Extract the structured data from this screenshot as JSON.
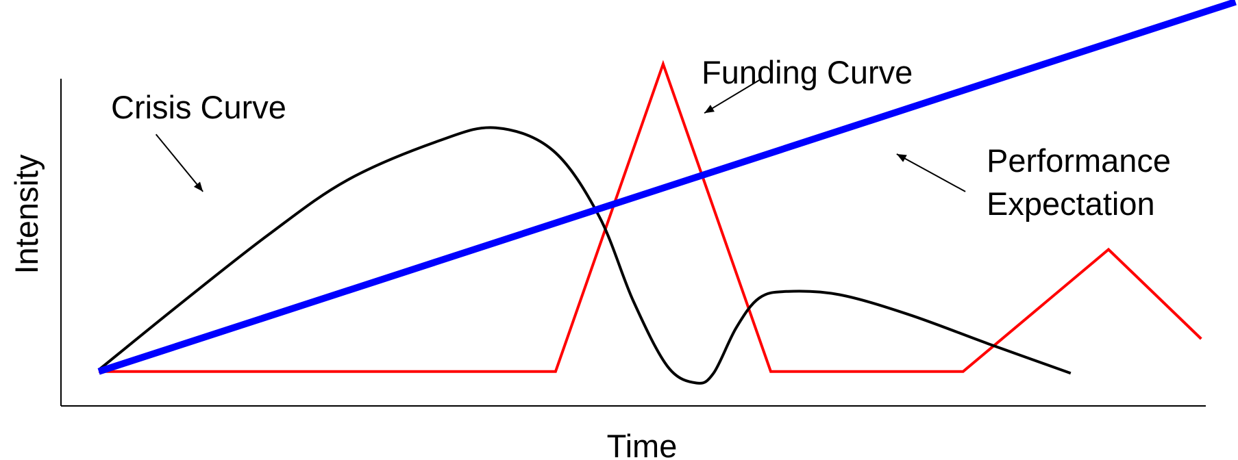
{
  "chart_data": {
    "type": "line",
    "title": "",
    "xlabel": "Time",
    "ylabel": "Intensity",
    "xlim": [
      0,
      100
    ],
    "ylim": [
      0,
      100
    ],
    "grid": false,
    "legend": "none",
    "series": [
      {
        "name": "Crisis Curve",
        "color": "#000000",
        "smooth": true,
        "x": [
          3.3,
          10,
          18,
          25,
          33,
          38,
          43,
          47,
          50,
          53,
          55.5,
          57,
          59,
          61,
          63.5,
          68,
          74,
          81,
          88.2
        ],
        "y": [
          11,
          30,
          52,
          69,
          81,
          85,
          78,
          58,
          32,
          12,
          7,
          10,
          24,
          33,
          35,
          34,
          28,
          19,
          10
        ]
      },
      {
        "name": "Funding Curve",
        "color": "#ff0000",
        "smooth": false,
        "x": [
          3.3,
          43.2,
          52.6,
          62,
          78.8,
          91.5,
          99.6
        ],
        "y": [
          10.5,
          10.5,
          104.5,
          10.5,
          10.5,
          47.8,
          20.5
        ]
      },
      {
        "name": "Performance Expectation",
        "color": "#0000ff",
        "smooth": false,
        "x": [
          3.3,
          102.6
        ],
        "y": [
          10.5,
          123.5
        ]
      }
    ],
    "annotations": [
      {
        "id": "crisis",
        "lines": [
          "Crisis Curve"
        ],
        "arrow": {
          "from": [
            8.3,
            83
          ],
          "to": [
            12.4,
            65.5
          ]
        }
      },
      {
        "id": "funding",
        "lines": [
          "Funding Curve"
        ],
        "arrow": {
          "from": [
            61.2,
            100
          ],
          "to": [
            56.2,
            89.5
          ]
        }
      },
      {
        "id": "performance",
        "lines": [
          "Performance",
          "Expectation"
        ],
        "arrow": {
          "from": [
            79,
            65.5
          ],
          "to": [
            73,
            77
          ]
        }
      }
    ]
  }
}
